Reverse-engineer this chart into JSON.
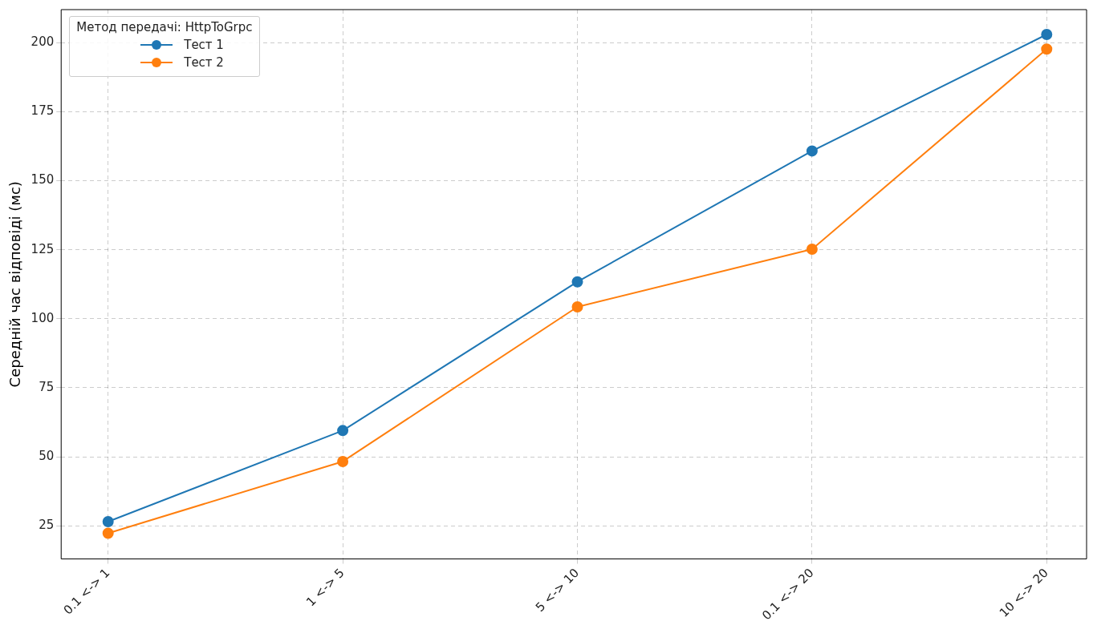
{
  "chart_data": {
    "type": "line",
    "ylabel": "Середній час відповіді (мс)",
    "legend_title": "Метод передачі: HttpToGrpc",
    "categories": [
      "0.1 <-> 1",
      "1 <-> 5",
      "5 <-> 10",
      "0.1 <-> 20",
      "10 <-> 20"
    ],
    "series": [
      {
        "name": "Тест 1",
        "color": "#1f77b4",
        "values": [
          26.5,
          59.5,
          113.4,
          160.8,
          203
        ]
      },
      {
        "name": "Тест 2",
        "color": "#ff7f0e",
        "values": [
          22.3,
          48.3,
          104.3,
          125.2,
          197.7
        ]
      }
    ],
    "ylim": [
      13,
      212
    ],
    "yticks": [
      25,
      50,
      75,
      100,
      125,
      150,
      175,
      200
    ],
    "grid": true,
    "legend": "top left",
    "marker": "circle",
    "line_style": "solid"
  }
}
